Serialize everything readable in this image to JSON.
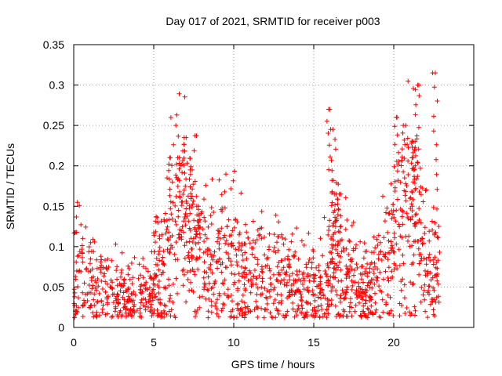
{
  "chart_data": {
    "type": "scatter",
    "title": "Day 017 of 2021, SRMTID for receiver p003",
    "xlabel": "GPS time / hours",
    "ylabel": "SRMTID / TECUs",
    "xlim": [
      0,
      25
    ],
    "ylim": [
      0,
      0.35
    ],
    "grid": true,
    "marker": "+",
    "color": "#ff0000",
    "x_ticks": [
      0,
      5,
      10,
      15,
      20
    ],
    "x_tick_labels": [
      "0",
      "5",
      "10",
      "15",
      "20"
    ],
    "y_ticks": [
      0,
      0.05,
      0.1,
      0.15,
      0.2,
      0.25,
      0.3,
      0.35
    ],
    "y_tick_labels": [
      "0",
      "0.05",
      "0.1",
      "0.15",
      "0.2",
      "0.25",
      "0.3",
      "0.35"
    ],
    "envelope": [
      {
        "x": 0.0,
        "y": 0.07
      },
      {
        "x": 0.5,
        "y": 0.065
      },
      {
        "x": 1.0,
        "y": 0.05
      },
      {
        "x": 2.0,
        "y": 0.045
      },
      {
        "x": 3.0,
        "y": 0.04
      },
      {
        "x": 4.0,
        "y": 0.035
      },
      {
        "x": 4.5,
        "y": 0.035
      },
      {
        "x": 5.0,
        "y": 0.055
      },
      {
        "x": 5.5,
        "y": 0.075
      },
      {
        "x": 6.0,
        "y": 0.1
      },
      {
        "x": 6.5,
        "y": 0.11
      },
      {
        "x": 7.0,
        "y": 0.115
      },
      {
        "x": 7.5,
        "y": 0.11
      },
      {
        "x": 8.0,
        "y": 0.085
      },
      {
        "x": 9.0,
        "y": 0.075
      },
      {
        "x": 10.0,
        "y": 0.08
      },
      {
        "x": 10.5,
        "y": 0.07
      },
      {
        "x": 11.0,
        "y": 0.055
      },
      {
        "x": 12.0,
        "y": 0.06
      },
      {
        "x": 13.0,
        "y": 0.055
      },
      {
        "x": 14.0,
        "y": 0.05
      },
      {
        "x": 15.0,
        "y": 0.045
      },
      {
        "x": 15.5,
        "y": 0.05
      },
      {
        "x": 16.0,
        "y": 0.06
      },
      {
        "x": 16.5,
        "y": 0.075
      },
      {
        "x": 17.0,
        "y": 0.06
      },
      {
        "x": 18.0,
        "y": 0.055
      },
      {
        "x": 18.5,
        "y": 0.045
      },
      {
        "x": 19.0,
        "y": 0.06
      },
      {
        "x": 19.5,
        "y": 0.08
      },
      {
        "x": 20.0,
        "y": 0.1
      },
      {
        "x": 20.5,
        "y": 0.11
      },
      {
        "x": 21.0,
        "y": 0.14
      },
      {
        "x": 21.5,
        "y": 0.12
      },
      {
        "x": 22.0,
        "y": 0.07
      },
      {
        "x": 22.5,
        "y": 0.06
      },
      {
        "x": 22.9,
        "y": 0.07
      }
    ],
    "spikes": [
      {
        "x": 6.0,
        "y": 0.21
      },
      {
        "x": 6.5,
        "y": 0.21
      },
      {
        "x": 6.9,
        "y": 0.235
      },
      {
        "x": 7.4,
        "y": 0.195
      },
      {
        "x": 7.8,
        "y": 0.15
      },
      {
        "x": 16.0,
        "y": 0.27
      },
      {
        "x": 16.2,
        "y": 0.245
      },
      {
        "x": 16.4,
        "y": 0.165
      },
      {
        "x": 16.6,
        "y": 0.165
      },
      {
        "x": 20.2,
        "y": 0.26
      },
      {
        "x": 20.6,
        "y": 0.25
      },
      {
        "x": 21.2,
        "y": 0.23
      },
      {
        "x": 21.5,
        "y": 0.3
      },
      {
        "x": 22.6,
        "y": 0.315
      }
    ],
    "gaps": [
      [
        22.95,
        25.0
      ]
    ],
    "point_count": 1500,
    "spread": 0.55
  }
}
